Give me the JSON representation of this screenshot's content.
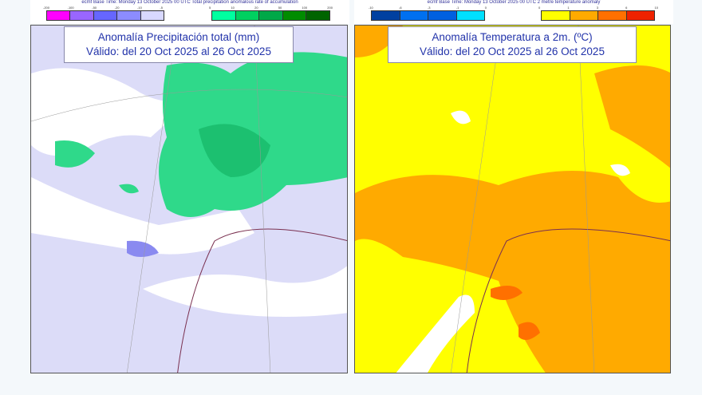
{
  "left": {
    "header": "ecmf Base Time: Monday 13 October 2025 00 UTC Total precipitation anomalous rate of accumulation",
    "neg_ticks": [
      "-200",
      "-100",
      "-50",
      "-20",
      "-10",
      "-5"
    ],
    "pos_ticks": [
      "5",
      "10",
      "20",
      "50",
      "100",
      "200"
    ],
    "neg_colors": [
      "#ff00ff",
      "#9966ff",
      "#6666ff",
      "#8c8cff",
      "#d8d8ff"
    ],
    "pos_colors": [
      "#00ffa0",
      "#00d060",
      "#00a848",
      "#008c00",
      "#006400"
    ],
    "title": "Anomalía Precipitación total (mm)",
    "valid": "Válido: del 20 Oct 2025 al 26 Oct 2025"
  },
  "right": {
    "header": "ecmf Base Time: Monday 13 October 2025 00 UTC 2 metre temperature anomaly",
    "neg_ticks": [
      "-10",
      "-6",
      "-3",
      "-1",
      "0"
    ],
    "pos_ticks": [
      "0",
      "1",
      "3",
      "6",
      "10"
    ],
    "neg_colors": [
      "#0040a0",
      "#0070f0",
      "#0060e0",
      "#00e0ff"
    ],
    "pos_colors": [
      "#ffff00",
      "#ffaa00",
      "#ff7000",
      "#ee2200"
    ],
    "title": "Anomalía Temperatura a 2m. (ºC)",
    "valid": "Válido: del 20 Oct 2025 al 26 Oct 2025"
  }
}
